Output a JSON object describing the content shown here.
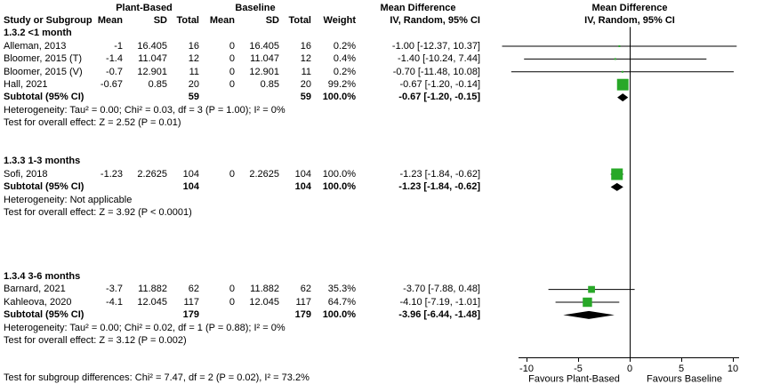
{
  "header": {
    "col_groups": {
      "plant": "Plant-Based",
      "baseline": "Baseline",
      "md_text": "Mean Difference",
      "md_plot": "Mean Difference"
    },
    "columns": {
      "study": "Study or Subgroup",
      "mean": "Mean",
      "sd": "SD",
      "total": "Total",
      "weight": "Weight",
      "ci": "IV, Random, 95% CI",
      "ci_plot": "IV, Random, 95% CI"
    }
  },
  "colors": {
    "marker_green": "#28a828",
    "diamond_black": "#000000",
    "line_black": "#000000"
  },
  "rows": [
    {
      "type": "subgroup",
      "label": "1.3.2 <1 month"
    },
    {
      "type": "study",
      "study": "Alleman, 2013",
      "m1": "-1",
      "sd1": "16.405",
      "t1": "16",
      "m2": "0",
      "sd2": "16.405",
      "t2": "16",
      "w": "0.2%",
      "ci": "-1.00 [-12.37, 10.37]",
      "est": -1.0,
      "lo": -12.37,
      "hi": 10.37,
      "weight": 0.2
    },
    {
      "type": "study",
      "study": "Bloomer, 2015 (T)",
      "m1": "-1.4",
      "sd1": "11.047",
      "t1": "12",
      "m2": "0",
      "sd2": "11.047",
      "t2": "12",
      "w": "0.4%",
      "ci": "-1.40 [-10.24, 7.44]",
      "est": -1.4,
      "lo": -10.24,
      "hi": 7.44,
      "weight": 0.4
    },
    {
      "type": "study",
      "study": "Bloomer, 2015 (V)",
      "m1": "-0.7",
      "sd1": "12.901",
      "t1": "11",
      "m2": "0",
      "sd2": "12.901",
      "t2": "11",
      "w": "0.2%",
      "ci": "-0.70 [-11.48, 10.08]",
      "est": -0.7,
      "lo": -11.48,
      "hi": 10.08,
      "weight": 0.2
    },
    {
      "type": "study",
      "study": "Hall, 2021",
      "m1": "-0.67",
      "sd1": "0.85",
      "t1": "20",
      "m2": "0",
      "sd2": "0.85",
      "t2": "20",
      "w": "99.2%",
      "ci": "-0.67 [-1.20, -0.14]",
      "est": -0.67,
      "lo": -1.2,
      "hi": -0.14,
      "weight": 99.2
    },
    {
      "type": "subtotal",
      "label": "Subtotal (95% CI)",
      "t1": "59",
      "t2": "59",
      "w": "100.0%",
      "ci": "-0.67 [-1.20, -0.15]",
      "est": -0.67,
      "lo": -1.2,
      "hi": -0.15
    },
    {
      "type": "note",
      "text": "Heterogeneity: Tau² = 0.00; Chi² = 0.03, df = 3 (P = 1.00); I² = 0%"
    },
    {
      "type": "note",
      "text": "Test for overall effect: Z = 2.52 (P = 0.01)"
    },
    {
      "type": "gap"
    },
    {
      "type": "gap"
    },
    {
      "type": "subgroup",
      "label": "1.3.3 1-3 months"
    },
    {
      "type": "study",
      "study": "Sofi, 2018",
      "m1": "-1.23",
      "sd1": "2.2625",
      "t1": "104",
      "m2": "0",
      "sd2": "2.2625",
      "t2": "104",
      "w": "100.0%",
      "ci": "-1.23 [-1.84, -0.62]",
      "est": -1.23,
      "lo": -1.84,
      "hi": -0.62,
      "weight": 100.0
    },
    {
      "type": "subtotal",
      "label": "Subtotal (95% CI)",
      "t1": "104",
      "t2": "104",
      "w": "100.0%",
      "ci": "-1.23 [-1.84, -0.62]",
      "est": -1.23,
      "lo": -1.84,
      "hi": -0.62
    },
    {
      "type": "note",
      "text": "Heterogeneity: Not applicable"
    },
    {
      "type": "note",
      "text": "Test for overall effect: Z = 3.92 (P < 0.0001)"
    },
    {
      "type": "gap"
    },
    {
      "type": "gap"
    },
    {
      "type": "gap"
    },
    {
      "type": "gap"
    },
    {
      "type": "subgroup",
      "label": "1.3.4 3-6 months"
    },
    {
      "type": "study",
      "study": "Barnard, 2021",
      "m1": "-3.7",
      "sd1": "11.882",
      "t1": "62",
      "m2": "0",
      "sd2": "11.882",
      "t2": "62",
      "w": "35.3%",
      "ci": "-3.70 [-7.88, 0.48]",
      "est": -3.7,
      "lo": -7.88,
      "hi": 0.48,
      "weight": 35.3
    },
    {
      "type": "study",
      "study": "Kahleova, 2020",
      "m1": "-4.1",
      "sd1": "12.045",
      "t1": "117",
      "m2": "0",
      "sd2": "12.045",
      "t2": "117",
      "w": "64.7%",
      "ci": "-4.10 [-7.19, -1.01]",
      "est": -4.1,
      "lo": -7.19,
      "hi": -1.01,
      "weight": 64.7
    },
    {
      "type": "subtotal",
      "label": "Subtotal (95% CI)",
      "t1": "179",
      "t2": "179",
      "w": "100.0%",
      "ci": "-3.96 [-6.44, -1.48]",
      "est": -3.96,
      "lo": -6.44,
      "hi": -1.48
    },
    {
      "type": "note",
      "text": "Heterogeneity: Tau² = 0.00; Chi² = 0.02, df = 1 (P = 0.88); I² = 0%"
    },
    {
      "type": "note",
      "text": "Test for overall effect: Z = 3.12 (P = 0.002)"
    }
  ],
  "axis": {
    "ticks": [
      -10,
      -5,
      0,
      5,
      10
    ],
    "favours_left": "Favours Plant-Based",
    "favours_right": "Favours Baseline"
  },
  "footer": {
    "subgroup_test": "Test for subgroup differences: Chi² = 7.47, df = 2 (P = 0.02), I² = 73.2%"
  },
  "chart_data": {
    "type": "forest",
    "effect_measure": "Mean Difference, IV, Random, 95% CI",
    "x_axis": {
      "ticks": [
        -10,
        -5,
        0,
        5,
        10
      ],
      "range": [
        -10,
        10
      ],
      "label_left": "Favours Plant-Based",
      "label_right": "Favours Baseline"
    },
    "subgroups": [
      {
        "name": "1.3.2 <1 month",
        "studies": [
          {
            "name": "Alleman, 2013",
            "plant_mean": -1,
            "plant_sd": 16.405,
            "plant_n": 16,
            "base_mean": 0,
            "base_sd": 16.405,
            "base_n": 16,
            "weight_pct": 0.2,
            "md": -1.0,
            "ci_low": -12.37,
            "ci_high": 10.37
          },
          {
            "name": "Bloomer, 2015 (T)",
            "plant_mean": -1.4,
            "plant_sd": 11.047,
            "plant_n": 12,
            "base_mean": 0,
            "base_sd": 11.047,
            "base_n": 12,
            "weight_pct": 0.4,
            "md": -1.4,
            "ci_low": -10.24,
            "ci_high": 7.44
          },
          {
            "name": "Bloomer, 2015 (V)",
            "plant_mean": -0.7,
            "plant_sd": 12.901,
            "plant_n": 11,
            "base_mean": 0,
            "base_sd": 12.901,
            "base_n": 11,
            "weight_pct": 0.2,
            "md": -0.7,
            "ci_low": -11.48,
            "ci_high": 10.08
          },
          {
            "name": "Hall, 2021",
            "plant_mean": -0.67,
            "plant_sd": 0.85,
            "plant_n": 20,
            "base_mean": 0,
            "base_sd": 0.85,
            "base_n": 20,
            "weight_pct": 99.2,
            "md": -0.67,
            "ci_low": -1.2,
            "ci_high": -0.14
          }
        ],
        "subtotal": {
          "plant_n": 59,
          "base_n": 59,
          "weight_pct": 100.0,
          "md": -0.67,
          "ci_low": -1.2,
          "ci_high": -0.15
        },
        "heterogeneity": "Tau² = 0.00; Chi² = 0.03, df = 3 (P = 1.00); I² = 0%",
        "overall_effect": "Z = 2.52 (P = 0.01)"
      },
      {
        "name": "1.3.3 1-3 months",
        "studies": [
          {
            "name": "Sofi, 2018",
            "plant_mean": -1.23,
            "plant_sd": 2.2625,
            "plant_n": 104,
            "base_mean": 0,
            "base_sd": 2.2625,
            "base_n": 104,
            "weight_pct": 100.0,
            "md": -1.23,
            "ci_low": -1.84,
            "ci_high": -0.62
          }
        ],
        "subtotal": {
          "plant_n": 104,
          "base_n": 104,
          "weight_pct": 100.0,
          "md": -1.23,
          "ci_low": -1.84,
          "ci_high": -0.62
        },
        "heterogeneity": "Not applicable",
        "overall_effect": "Z = 3.92 (P < 0.0001)"
      },
      {
        "name": "1.3.4 3-6 months",
        "studies": [
          {
            "name": "Barnard, 2021",
            "plant_mean": -3.7,
            "plant_sd": 11.882,
            "plant_n": 62,
            "base_mean": 0,
            "base_sd": 11.882,
            "base_n": 62,
            "weight_pct": 35.3,
            "md": -3.7,
            "ci_low": -7.88,
            "ci_high": 0.48
          },
          {
            "name": "Kahleova, 2020",
            "plant_mean": -4.1,
            "plant_sd": 12.045,
            "plant_n": 117,
            "base_mean": 0,
            "base_sd": 12.045,
            "base_n": 117,
            "weight_pct": 64.7,
            "md": -4.1,
            "ci_low": -7.19,
            "ci_high": -1.01
          }
        ],
        "subtotal": {
          "plant_n": 179,
          "base_n": 179,
          "weight_pct": 100.0,
          "md": -3.96,
          "ci_low": -6.44,
          "ci_high": -1.48
        },
        "heterogeneity": "Tau² = 0.00; Chi² = 0.02, df = 1 (P = 0.88); I² = 0%",
        "overall_effect": "Z = 3.12 (P = 0.002)"
      }
    ],
    "subgroup_difference_test": "Chi² = 7.47, df = 2 (P = 0.02), I² = 73.2%"
  }
}
